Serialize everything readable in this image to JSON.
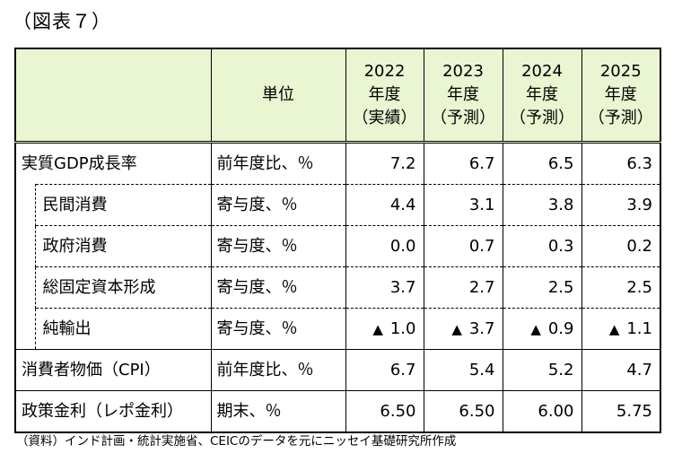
{
  "figure_label": "（図表７）",
  "header": {
    "unit": "単位",
    "years": [
      {
        "year": "2022",
        "label": "年度",
        "kind": "（実績）"
      },
      {
        "year": "2023",
        "label": "年度",
        "kind": "（予測）"
      },
      {
        "year": "2024",
        "label": "年度",
        "kind": "（予測）"
      },
      {
        "year": "2025",
        "label": "年度",
        "kind": "（予測）"
      }
    ]
  },
  "rows": {
    "gdp": {
      "label": "実質GDP成長率",
      "unit": "前年度比、％",
      "values": [
        "7.2",
        "6.7",
        "6.5",
        "6.3"
      ]
    },
    "pc": {
      "label": "民間消費",
      "unit": "寄与度、％",
      "values": [
        "4.4",
        "3.1",
        "3.8",
        "3.9"
      ]
    },
    "gc": {
      "label": "政府消費",
      "unit": "寄与度、％",
      "values": [
        "0.0",
        "0.7",
        "0.3",
        "0.2"
      ]
    },
    "gfcf": {
      "label": "総固定資本形成",
      "unit": "寄与度、％",
      "values": [
        "3.7",
        "2.7",
        "2.5",
        "2.5"
      ]
    },
    "netexp": {
      "label": "純輸出",
      "unit": "寄与度、％",
      "neg_symbol": "▲",
      "values": [
        "1.0",
        "3.7",
        "0.9",
        "1.1"
      ]
    },
    "cpi": {
      "label": "消費者物価（CPI）",
      "unit": "前年度比、％",
      "values": [
        "6.7",
        "5.4",
        "5.2",
        "4.7"
      ]
    },
    "repo": {
      "label": "政策金利（レポ金利）",
      "unit": "期末、％",
      "values": [
        "6.50",
        "6.50",
        "6.00",
        "5.75"
      ]
    }
  },
  "source": "（資料）インド計画・統計実施省、CEICのデータを元にニッセイ基礎研究所作成",
  "colors": {
    "header_bg": "#eaf5d2"
  }
}
